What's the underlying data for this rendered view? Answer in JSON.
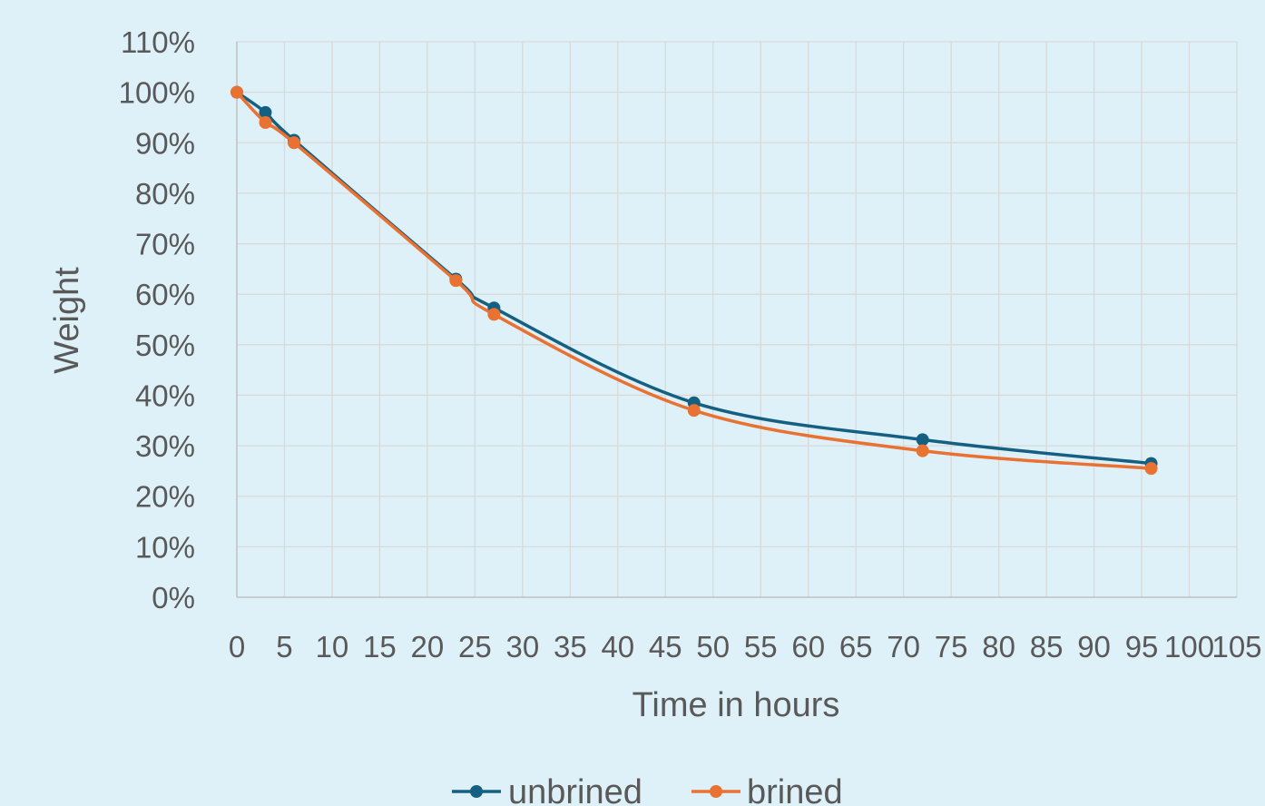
{
  "chart_data": {
    "type": "scatter",
    "title": "",
    "xlabel": "Time in hours",
    "ylabel": "Weight",
    "xlim": [
      0,
      105
    ],
    "ylim": [
      0,
      1.1
    ],
    "x_ticks": [
      "0",
      "5",
      "10",
      "15",
      "20",
      "25",
      "30",
      "35",
      "40",
      "45",
      "50",
      "55",
      "60",
      "65",
      "70",
      "75",
      "80",
      "85",
      "90",
      "95",
      "100",
      "105"
    ],
    "y_ticks": [
      "0%",
      "10%",
      "20%",
      "30%",
      "40%",
      "50%",
      "60%",
      "70%",
      "80%",
      "90%",
      "100%",
      "110%"
    ],
    "grid": true,
    "smooth_lines": true,
    "legend_position": "bottom",
    "series": [
      {
        "name": "unbrined",
        "color": "#156082",
        "x": [
          0,
          3,
          6,
          23,
          27,
          48,
          72,
          96
        ],
        "y": [
          1.0,
          0.96,
          0.905,
          0.63,
          0.573,
          0.385,
          0.312,
          0.265
        ]
      },
      {
        "name": "brined",
        "color": "#e97132",
        "x": [
          0,
          3,
          6,
          23,
          27,
          48,
          72,
          96
        ],
        "y": [
          1.0,
          0.94,
          0.9,
          0.627,
          0.56,
          0.37,
          0.29,
          0.255
        ]
      }
    ]
  }
}
